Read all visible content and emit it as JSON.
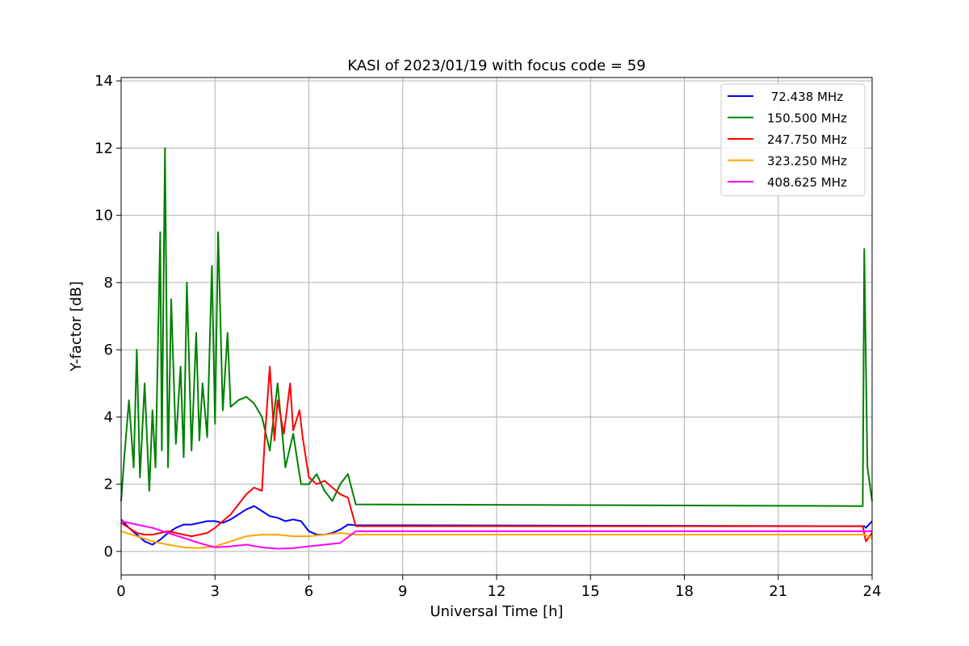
{
  "chart_data": {
    "type": "line",
    "title": "KASI of 2023/01/19 with focus code = 59",
    "xlabel": "Universal Time [h]",
    "ylabel": "Y-factor [dB]",
    "xlim": [
      0,
      24
    ],
    "ylim": [
      -0.7,
      14.1
    ],
    "xticks": [
      0,
      3,
      6,
      9,
      12,
      15,
      18,
      21,
      24
    ],
    "yticks": [
      0,
      2,
      4,
      6,
      8,
      10,
      12,
      14
    ],
    "grid": true,
    "legend_position": "top-right",
    "series": [
      {
        "name": " 72.438 MHz",
        "color": "#0000ff",
        "x": [
          0,
          0.25,
          0.5,
          0.75,
          1.0,
          1.25,
          1.5,
          1.75,
          2.0,
          2.25,
          2.5,
          2.75,
          3.0,
          3.25,
          3.5,
          3.75,
          4.0,
          4.25,
          4.5,
          4.75,
          5.0,
          5.25,
          5.5,
          5.75,
          6.0,
          6.25,
          6.5,
          6.75,
          7.0,
          7.25,
          7.5,
          23.75,
          23.8,
          24.0
        ],
        "y": [
          0.95,
          0.7,
          0.5,
          0.3,
          0.2,
          0.35,
          0.55,
          0.7,
          0.8,
          0.8,
          0.85,
          0.9,
          0.9,
          0.85,
          0.95,
          1.1,
          1.25,
          1.35,
          1.2,
          1.05,
          1.0,
          0.9,
          0.95,
          0.9,
          0.6,
          0.5,
          0.5,
          0.55,
          0.65,
          0.8,
          0.78,
          0.75,
          0.7,
          0.9
        ]
      },
      {
        "name": "150.500 MHz",
        "color": "#008000",
        "x": [
          0,
          0.1,
          0.25,
          0.4,
          0.5,
          0.6,
          0.75,
          0.9,
          1.0,
          1.1,
          1.25,
          1.3,
          1.4,
          1.5,
          1.6,
          1.75,
          1.9,
          2.0,
          2.1,
          2.25,
          2.4,
          2.5,
          2.6,
          2.75,
          2.9,
          3.0,
          3.1,
          3.25,
          3.4,
          3.5,
          3.75,
          4.0,
          4.25,
          4.5,
          4.75,
          5.0,
          5.25,
          5.5,
          5.75,
          6.0,
          6.25,
          6.5,
          6.75,
          7.0,
          7.25,
          7.5,
          23.7,
          23.75,
          23.85,
          24.0
        ],
        "y": [
          1.5,
          2.8,
          4.5,
          2.5,
          6.0,
          2.2,
          5.0,
          1.8,
          4.2,
          2.5,
          9.5,
          3.0,
          12.0,
          2.5,
          7.5,
          3.2,
          5.5,
          2.8,
          8.0,
          3.0,
          6.5,
          3.3,
          5.0,
          3.4,
          8.5,
          3.8,
          9.5,
          4.2,
          6.5,
          4.3,
          4.5,
          4.6,
          4.4,
          4.0,
          3.0,
          5.0,
          2.5,
          3.5,
          2.0,
          2.0,
          2.3,
          1.8,
          1.5,
          2.0,
          2.3,
          1.4,
          1.35,
          9.0,
          2.5,
          1.5
        ]
      },
      {
        "name": "247.750 MHz",
        "color": "#ff0000",
        "x": [
          0,
          0.25,
          0.5,
          0.75,
          1.0,
          1.25,
          1.5,
          1.75,
          2.0,
          2.25,
          2.5,
          2.75,
          3.0,
          3.25,
          3.5,
          3.75,
          4.0,
          4.25,
          4.5,
          4.6,
          4.75,
          4.9,
          5.0,
          5.2,
          5.4,
          5.5,
          5.7,
          5.8,
          6.0,
          6.25,
          6.5,
          6.75,
          7.0,
          7.25,
          7.5,
          23.7,
          23.8,
          24.0
        ],
        "y": [
          0.85,
          0.7,
          0.55,
          0.5,
          0.5,
          0.55,
          0.6,
          0.55,
          0.5,
          0.45,
          0.5,
          0.55,
          0.7,
          0.9,
          1.1,
          1.4,
          1.7,
          1.9,
          1.8,
          3.5,
          5.5,
          3.3,
          4.5,
          3.5,
          5.0,
          3.6,
          4.2,
          3.4,
          2.2,
          2.0,
          2.1,
          1.9,
          1.7,
          1.6,
          0.75,
          0.75,
          0.3,
          0.55
        ]
      },
      {
        "name": "323.250 MHz",
        "color": "#ffa500",
        "x": [
          0,
          0.5,
          1.0,
          1.5,
          2.0,
          2.5,
          3.0,
          3.5,
          4.0,
          4.5,
          5.0,
          5.5,
          6.0,
          6.5,
          7.0,
          7.5,
          23.75,
          24.0
        ],
        "y": [
          0.6,
          0.45,
          0.3,
          0.2,
          0.12,
          0.1,
          0.15,
          0.3,
          0.45,
          0.5,
          0.5,
          0.45,
          0.45,
          0.5,
          0.55,
          0.5,
          0.5,
          0.4
        ]
      },
      {
        "name": "408.625 MHz",
        "color": "#ff00ff",
        "x": [
          0,
          0.5,
          1.0,
          1.5,
          2.0,
          2.5,
          3.0,
          3.5,
          4.0,
          4.5,
          5.0,
          5.5,
          6.0,
          6.5,
          7.0,
          7.5,
          23.75,
          24.0
        ],
        "y": [
          0.9,
          0.8,
          0.7,
          0.55,
          0.4,
          0.25,
          0.12,
          0.15,
          0.2,
          0.12,
          0.08,
          0.1,
          0.15,
          0.2,
          0.25,
          0.6,
          0.6,
          0.6
        ]
      }
    ]
  }
}
